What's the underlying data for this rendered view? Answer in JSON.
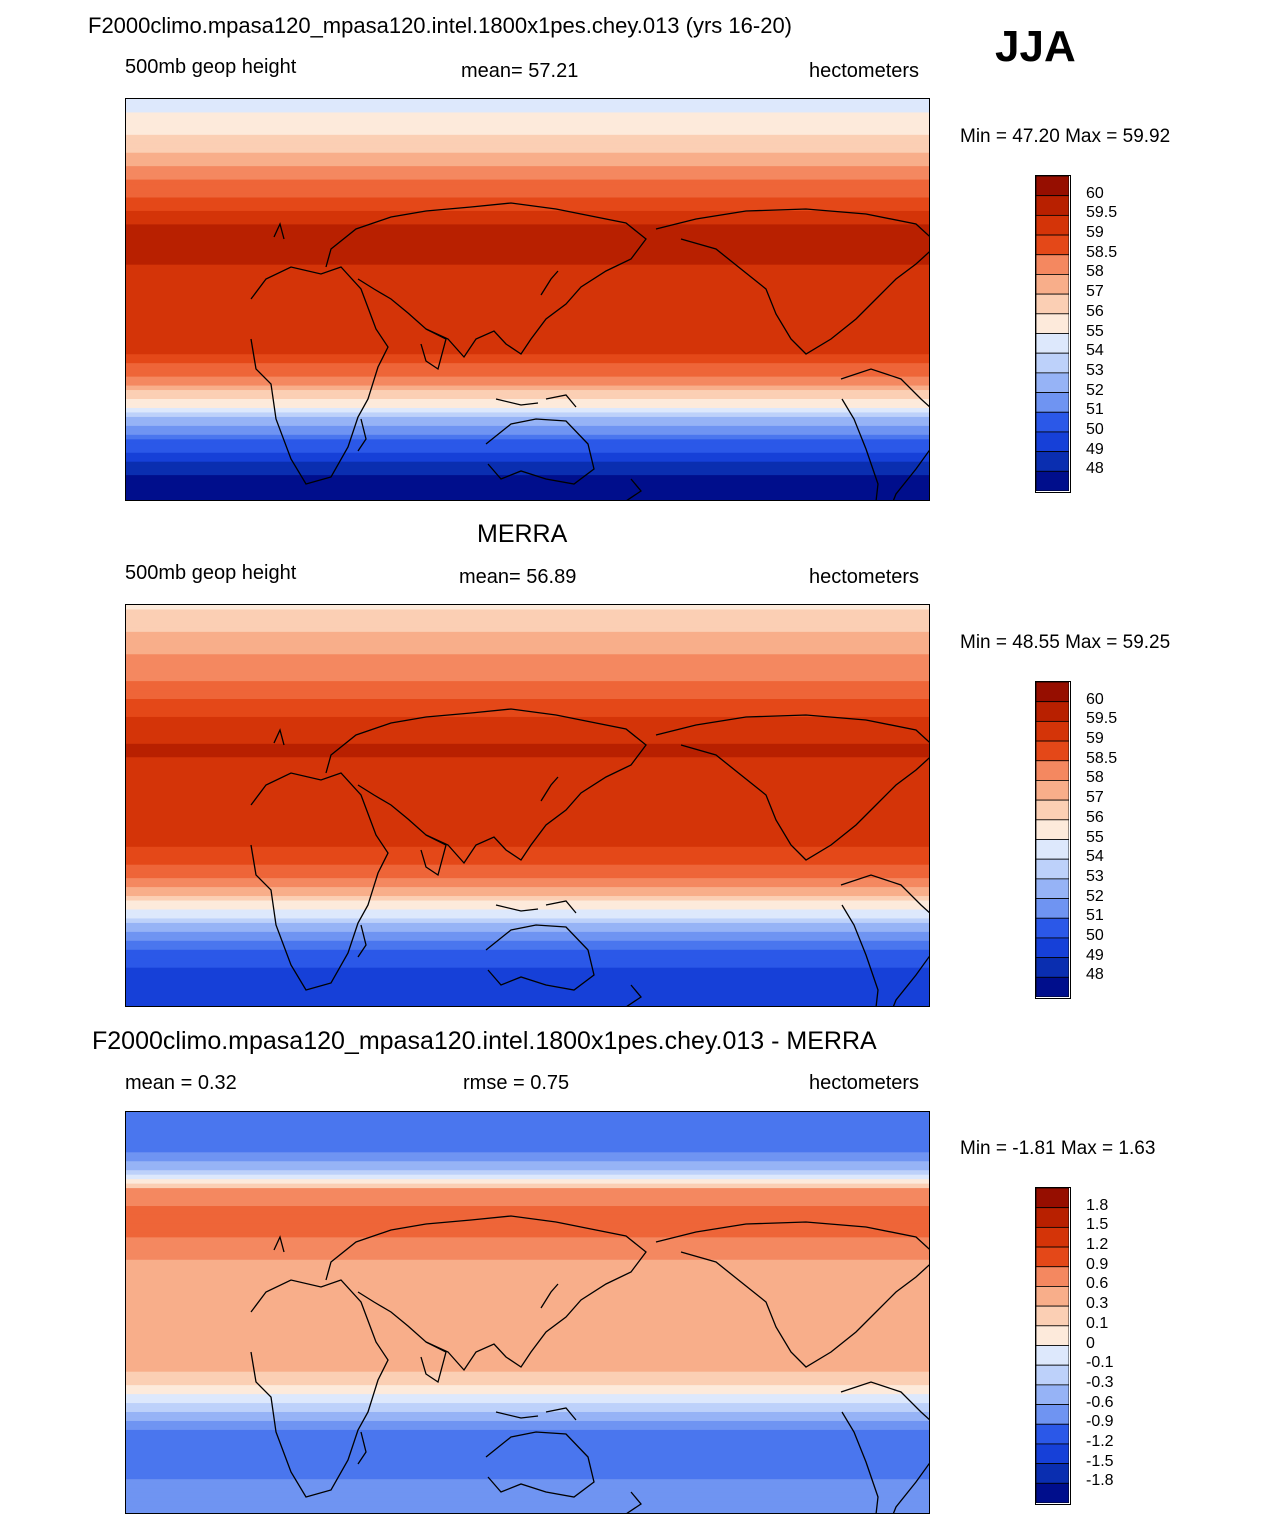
{
  "season": "JJA",
  "panels": [
    {
      "title": "F2000climo.mpasa120_mpasa120.intel.1800x1pes.chey.013 (yrs 16-20)",
      "left_label": "500mb geop height",
      "center_label": "mean=  57.21",
      "right_label": "hectometers",
      "minmax": "Min =  47.20 Max =  59.92"
    },
    {
      "title": "MERRA",
      "left_label": "500mb geop height",
      "center_label": "mean=  56.89",
      "right_label": "hectometers",
      "minmax": "Min =  48.55 Max =  59.25"
    },
    {
      "title": "F2000climo.mpasa120_mpasa120.intel.1800x1pes.chey.013 - MERRA",
      "left_label": "mean =   0.32",
      "center_label": "rmse =   0.75",
      "right_label": "hectometers",
      "minmax": "Min =  -1.81 Max =   1.63"
    }
  ],
  "colors": {
    "levels": [
      "#000e8c",
      "#0a2eb0",
      "#1640d8",
      "#2b58e8",
      "#4a76ee",
      "#6f94f2",
      "#96b3f6",
      "#bdd1fa",
      "#dde8fc",
      "#fdeadb",
      "#fbcfb4",
      "#f8ae8a",
      "#f48860",
      "#ee6538",
      "#e44818",
      "#d43408",
      "#b82000",
      "#960e00"
    ]
  },
  "chart_data": [
    {
      "type": "heatmap",
      "title": "F2000climo.mpasa120_mpasa120.intel.1800x1pes.chey.013 (yrs 16-20)",
      "variable": "500mb geop height",
      "units": "hectometers",
      "mean": 57.21,
      "min": 47.2,
      "max": 59.92,
      "colorbar_labels": [
        "60",
        "59.5",
        "59",
        "58.5",
        "58",
        "57",
        "56",
        "55",
        "54",
        "53",
        "52",
        "51",
        "50",
        "49",
        "48"
      ],
      "zonal_profile": {
        "lat": [
          90,
          75,
          65,
          55,
          45,
          35,
          25,
          15,
          0,
          -15,
          -25,
          -35,
          -45,
          -55,
          -65,
          -75,
          -90
        ],
        "value": [
          53.5,
          54.5,
          55.5,
          56.5,
          57.5,
          58.8,
          59.3,
          58.8,
          58.6,
          58.6,
          58.0,
          56.5,
          54.5,
          52.0,
          50.0,
          48.5,
          47.5
        ]
      }
    },
    {
      "type": "heatmap",
      "title": "MERRA",
      "variable": "500mb geop height",
      "units": "hectometers",
      "mean": 56.89,
      "min": 48.55,
      "max": 59.25,
      "colorbar_labels": [
        "60",
        "59.5",
        "59",
        "58.5",
        "58",
        "57",
        "56",
        "55",
        "54",
        "53",
        "52",
        "51",
        "50",
        "49",
        "48"
      ],
      "zonal_profile": {
        "lat": [
          90,
          75,
          65,
          55,
          45,
          35,
          25,
          15,
          0,
          -15,
          -25,
          -35,
          -45,
          -55,
          -65,
          -75,
          -90
        ],
        "value": [
          54.5,
          55.5,
          56.2,
          56.8,
          57.6,
          58.6,
          58.9,
          58.6,
          58.5,
          58.4,
          57.6,
          56.2,
          54.2,
          52.0,
          50.2,
          49.5,
          49.2
        ]
      }
    },
    {
      "type": "heatmap",
      "title": "F2000climo.mpasa120_mpasa120.intel.1800x1pes.chey.013 - MERRA",
      "variable": "difference",
      "units": "hectometers",
      "mean": 0.32,
      "rmse": 0.75,
      "min": -1.81,
      "max": 1.63,
      "colorbar_labels": [
        "1.8",
        "1.5",
        "1.2",
        "0.9",
        "0.6",
        "0.3",
        "0.1",
        "0",
        "-0.1",
        "-0.3",
        "-0.6",
        "-0.9",
        "-1.2",
        "-1.5",
        "-1.8"
      ],
      "zonal_profile": {
        "lat": [
          90,
          75,
          65,
          55,
          45,
          35,
          25,
          15,
          0,
          -15,
          -25,
          -35,
          -45,
          -55,
          -65,
          -75,
          -90
        ],
        "value": [
          -0.9,
          -1.0,
          -0.5,
          0.6,
          0.9,
          0.8,
          0.6,
          0.5,
          0.5,
          0.4,
          0.4,
          0.1,
          -0.5,
          -1.0,
          -0.9,
          -0.8,
          -0.8
        ]
      }
    }
  ]
}
